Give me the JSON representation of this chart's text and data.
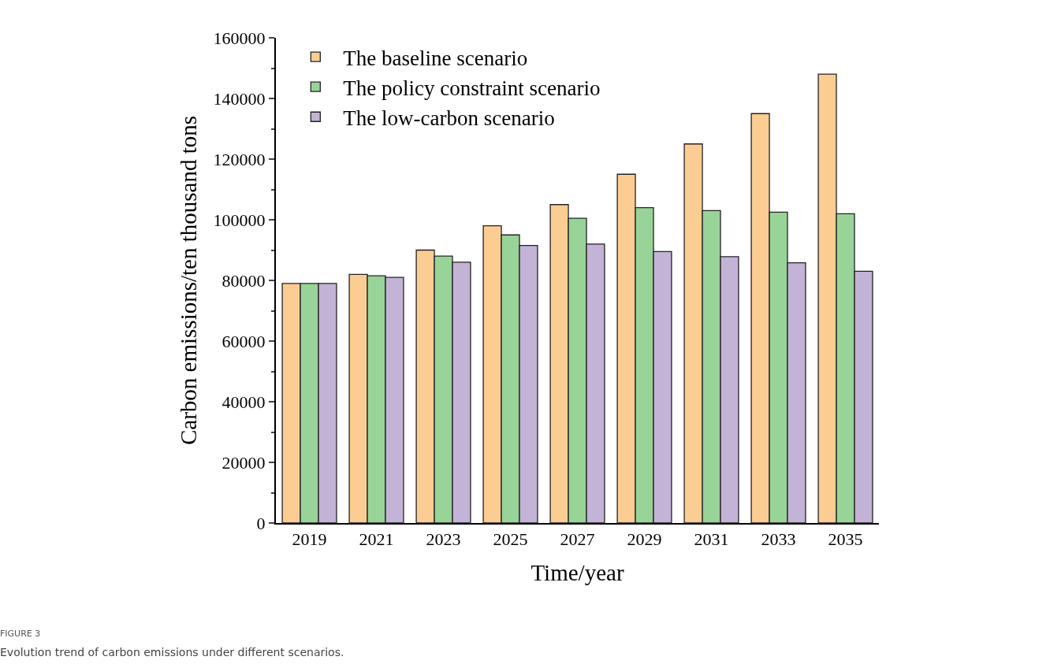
{
  "chart_data": {
    "type": "bar",
    "xlabel": "Time/year",
    "ylabel": "Carbon emissions/ten thousand tons",
    "categories": [
      "2019",
      "2021",
      "2023",
      "2025",
      "2027",
      "2029",
      "2031",
      "2033",
      "2035"
    ],
    "series": [
      {
        "name": "The baseline scenario",
        "color": "#fccd92",
        "values": [
          79000,
          82000,
          90000,
          98000,
          105000,
          115000,
          125000,
          135000,
          148000
        ]
      },
      {
        "name": "The policy constraint scenario",
        "color": "#98d498",
        "values": [
          79000,
          81500,
          88000,
          95000,
          100500,
          104000,
          103000,
          102500,
          102000
        ]
      },
      {
        "name": "The low-carbon scenario",
        "color": "#c3b3d6",
        "values": [
          79000,
          81000,
          86000,
          91500,
          92000,
          89500,
          87800,
          85800,
          83000
        ]
      }
    ],
    "ylim": [
      0,
      160000
    ],
    "yticks": [
      0,
      20000,
      40000,
      60000,
      80000,
      100000,
      120000,
      140000,
      160000
    ],
    "grid": false,
    "legend": "top left",
    "annotations": [
      "FIGURE 3",
      "Evolution trend of carbon emissions under different scenarios."
    ]
  }
}
